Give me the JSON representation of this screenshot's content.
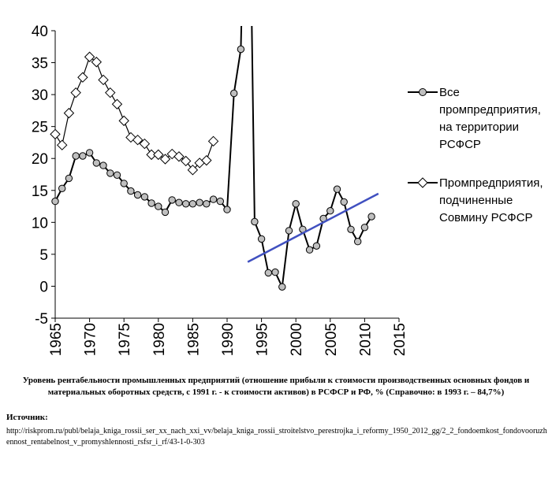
{
  "chart_data": {
    "type": "line",
    "x_range": [
      1965,
      2015
    ],
    "ylim": [
      -5,
      40
    ],
    "x_ticks": [
      "1965",
      "1970",
      "1975",
      "1980",
      "1985",
      "1990",
      "1995",
      "2000",
      "2005",
      "2010",
      "2015"
    ],
    "y_ticks": [
      "40",
      "35",
      "30",
      "25",
      "20",
      "15",
      "10",
      "5",
      "0",
      "-5"
    ],
    "grid": false,
    "legend_position": "right",
    "series": [
      {
        "name": "Все промпредприятия, на территории РСФСР",
        "marker": "circle",
        "color": "#000000",
        "marker_fill": "#bfbfbf",
        "segments": [
          {
            "x": [
              1965,
              1966,
              1967,
              1968,
              1969,
              1970,
              1971,
              1972,
              1973,
              1974,
              1975,
              1976,
              1977,
              1978,
              1979,
              1980,
              1981,
              1982,
              1983,
              1984,
              1985,
              1986,
              1987,
              1988,
              1989,
              1990,
              1991,
              1992,
              1993
            ],
            "y": [
              13.3,
              15.3,
              16.9,
              20.4,
              20.4,
              20.9,
              19.3,
              18.9,
              17.7,
              17.4,
              16.1,
              14.9,
              14.3,
              14.0,
              13.0,
              12.5,
              11.6,
              13.5,
              13.1,
              12.9,
              12.9,
              13.1,
              12.9,
              13.6,
              13.3,
              12.0,
              30.2,
              37.1,
              84.7
            ]
          },
          {
            "x": [
              1993,
              1994,
              1995,
              1996,
              1997,
              1998,
              1999,
              2000,
              2001,
              2002,
              2003,
              2004,
              2005,
              2006,
              2007,
              2008,
              2009,
              2010,
              2011
            ],
            "y": [
              84.7,
              10.1,
              7.4,
              2.1,
              2.2,
              -0.1,
              8.7,
              12.9,
              8.9,
              5.7,
              6.3,
              10.6,
              11.8,
              15.2,
              13.2,
              8.9,
              7.0,
              9.2,
              10.9
            ]
          }
        ],
        "visible_x": [
          1965,
          1966,
          1967,
          1968,
          1969,
          1970,
          1971,
          1972,
          1973,
          1974,
          1975,
          1976,
          1977,
          1978,
          1979,
          1980,
          1981,
          1982,
          1983,
          1984,
          1985,
          1986,
          1987,
          1988,
          1989,
          1990,
          1991,
          1992,
          1994,
          1995,
          1996,
          1997,
          1998,
          1999,
          2000,
          2001,
          2002,
          2003,
          2004,
          2005,
          2006,
          2007,
          2008,
          2009,
          2010,
          2011
        ],
        "visible_y": [
          13.3,
          15.3,
          16.9,
          20.4,
          20.4,
          20.9,
          19.3,
          18.9,
          17.7,
          17.4,
          16.1,
          14.9,
          14.3,
          14.0,
          13.0,
          12.5,
          11.6,
          13.5,
          13.1,
          12.9,
          12.9,
          13.1,
          12.9,
          13.6,
          13.3,
          12.0,
          30.2,
          37.1,
          10.1,
          7.4,
          2.1,
          2.2,
          -0.1,
          8.7,
          12.9,
          8.9,
          5.7,
          6.3,
          10.6,
          11.8,
          15.2,
          13.2,
          8.9,
          7.0,
          9.2,
          10.9
        ]
      },
      {
        "name": "Промпредприятия, подчиненные Совмину РСФСР",
        "marker": "diamond",
        "color": "#000000",
        "marker_fill": "#ffffff",
        "x": [
          1965,
          1966,
          1967,
          1968,
          1969,
          1970,
          1971,
          1972,
          1973,
          1974,
          1975,
          1976,
          1977,
          1978,
          1979,
          1980,
          1981,
          1982,
          1983,
          1984,
          1985,
          1986,
          1987,
          1988
        ],
        "y": [
          23.8,
          22.1,
          27.1,
          30.3,
          32.7,
          35.9,
          35.1,
          32.3,
          30.3,
          28.5,
          25.9,
          23.3,
          22.9,
          22.3,
          20.6,
          20.6,
          19.9,
          20.7,
          20.3,
          19.6,
          18.2,
          19.3,
          19.7,
          22.7
        ]
      }
    ],
    "trendline": {
      "color": "#4050c0",
      "x": [
        1993,
        2012
      ],
      "y": [
        3.8,
        14.5
      ]
    },
    "caption": "Уровень рентабельности промышленных предприятий (отношение прибыли к стоимости производственных основных фондов и материальных оборотных средств, с 1991 г. - к стоимости активов) в РСФСР и РФ, % (Справочно: в 1993 г. – 84,7%)",
    "source_label": "Источник:",
    "source_url": "http://riskprom.ru/publ/belaja_kniga_rossii_ser_xx_nach_xxi_vv/belaja_kniga_rossii_stroitelstvo_perestrojka_i_reformy_1950_2012_gg/2_2_fondoemkost_fondovooruzhennost_rentabelnost_v_promyshlennosti_rsfsr_i_rf/43-1-0-303"
  },
  "legend": {
    "item1_lines": [
      "Все",
      "промпредприятия,",
      "на территории",
      "РСФСР"
    ],
    "item2_lines": [
      "Промпредприятия,",
      "подчиненные",
      "Совмину РСФСР"
    ]
  }
}
